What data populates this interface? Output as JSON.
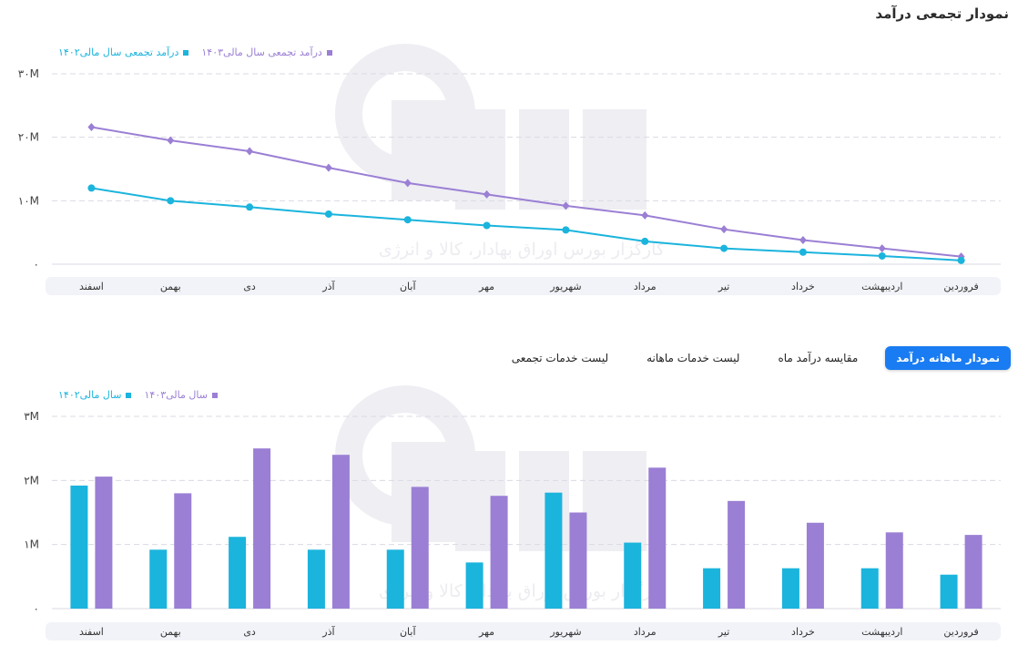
{
  "page": {
    "title": "نمودار تجمعی درآمد"
  },
  "colors": {
    "fy1403": "#9b7fd4",
    "fy1402": "#1bb4dd",
    "tab_active": "#1a7cf2"
  },
  "tabs": [
    {
      "label": "نمودار ماهانه درآمد",
      "active": true
    },
    {
      "label": "مقایسه درآمد ماه",
      "active": false
    },
    {
      "label": "لیست خدمات ماهانه",
      "active": false
    },
    {
      "label": "لیست خدمات تجمعی",
      "active": false
    }
  ],
  "watermark": {
    "logo_text": "آگاه",
    "caption": "کارگزار بورس اوراق بهادار، کالا و انرژی"
  },
  "chart_data": [
    {
      "type": "line",
      "categories": [
        "فروردین",
        "اردیبهشت",
        "خرداد",
        "تیر",
        "مرداد",
        "شهریور",
        "مهر",
        "آبان",
        "آذر",
        "دی",
        "بهمن",
        "اسفند"
      ],
      "series": [
        {
          "name": "درآمد تجمعی سال مالی۱۴۰۳",
          "color": "#9b7fd4",
          "marker": "diamond",
          "values": [
            1.2,
            2.5,
            3.8,
            5.5,
            7.7,
            9.2,
            11.0,
            12.8,
            15.2,
            17.8,
            19.5,
            21.6
          ]
        },
        {
          "name": "درآمد تجمعی سال مالی۱۴۰۲",
          "color": "#1bb4dd",
          "marker": "circle",
          "values": [
            0.6,
            1.3,
            1.9,
            2.5,
            3.6,
            5.4,
            6.1,
            7.0,
            7.9,
            9.0,
            10.0,
            12.0
          ]
        }
      ],
      "unit": "M",
      "ylim": [
        0,
        30
      ],
      "yticks": [
        "۰",
        "۱۰M",
        "۲۰M",
        "۳۰M"
      ],
      "ytick_values": [
        0,
        10,
        20,
        30
      ],
      "grid": true,
      "legend_position": "top-left"
    },
    {
      "type": "bar",
      "categories": [
        "فروردین",
        "اردیبهشت",
        "خرداد",
        "تیر",
        "مرداد",
        "شهریور",
        "مهر",
        "آبان",
        "آذر",
        "دی",
        "بهمن",
        "اسفند"
      ],
      "series": [
        {
          "name": "سال مالی۱۴۰۳",
          "color": "#9b7fd4",
          "values": [
            1.15,
            1.19,
            1.34,
            1.68,
            2.2,
            1.5,
            1.76,
            1.9,
            2.4,
            2.5,
            1.8,
            2.06
          ]
        },
        {
          "name": "سال مالی۱۴۰۲",
          "color": "#1bb4dd",
          "values": [
            0.53,
            0.63,
            0.63,
            0.63,
            1.03,
            1.81,
            0.72,
            0.92,
            0.92,
            1.12,
            0.92,
            1.92
          ]
        }
      ],
      "unit": "M",
      "ylim": [
        0,
        3
      ],
      "yticks": [
        "۰",
        "۱M",
        "۲M",
        "۳M"
      ],
      "ytick_values": [
        0,
        1,
        2,
        3
      ],
      "grid": true,
      "legend_position": "top-left"
    }
  ]
}
